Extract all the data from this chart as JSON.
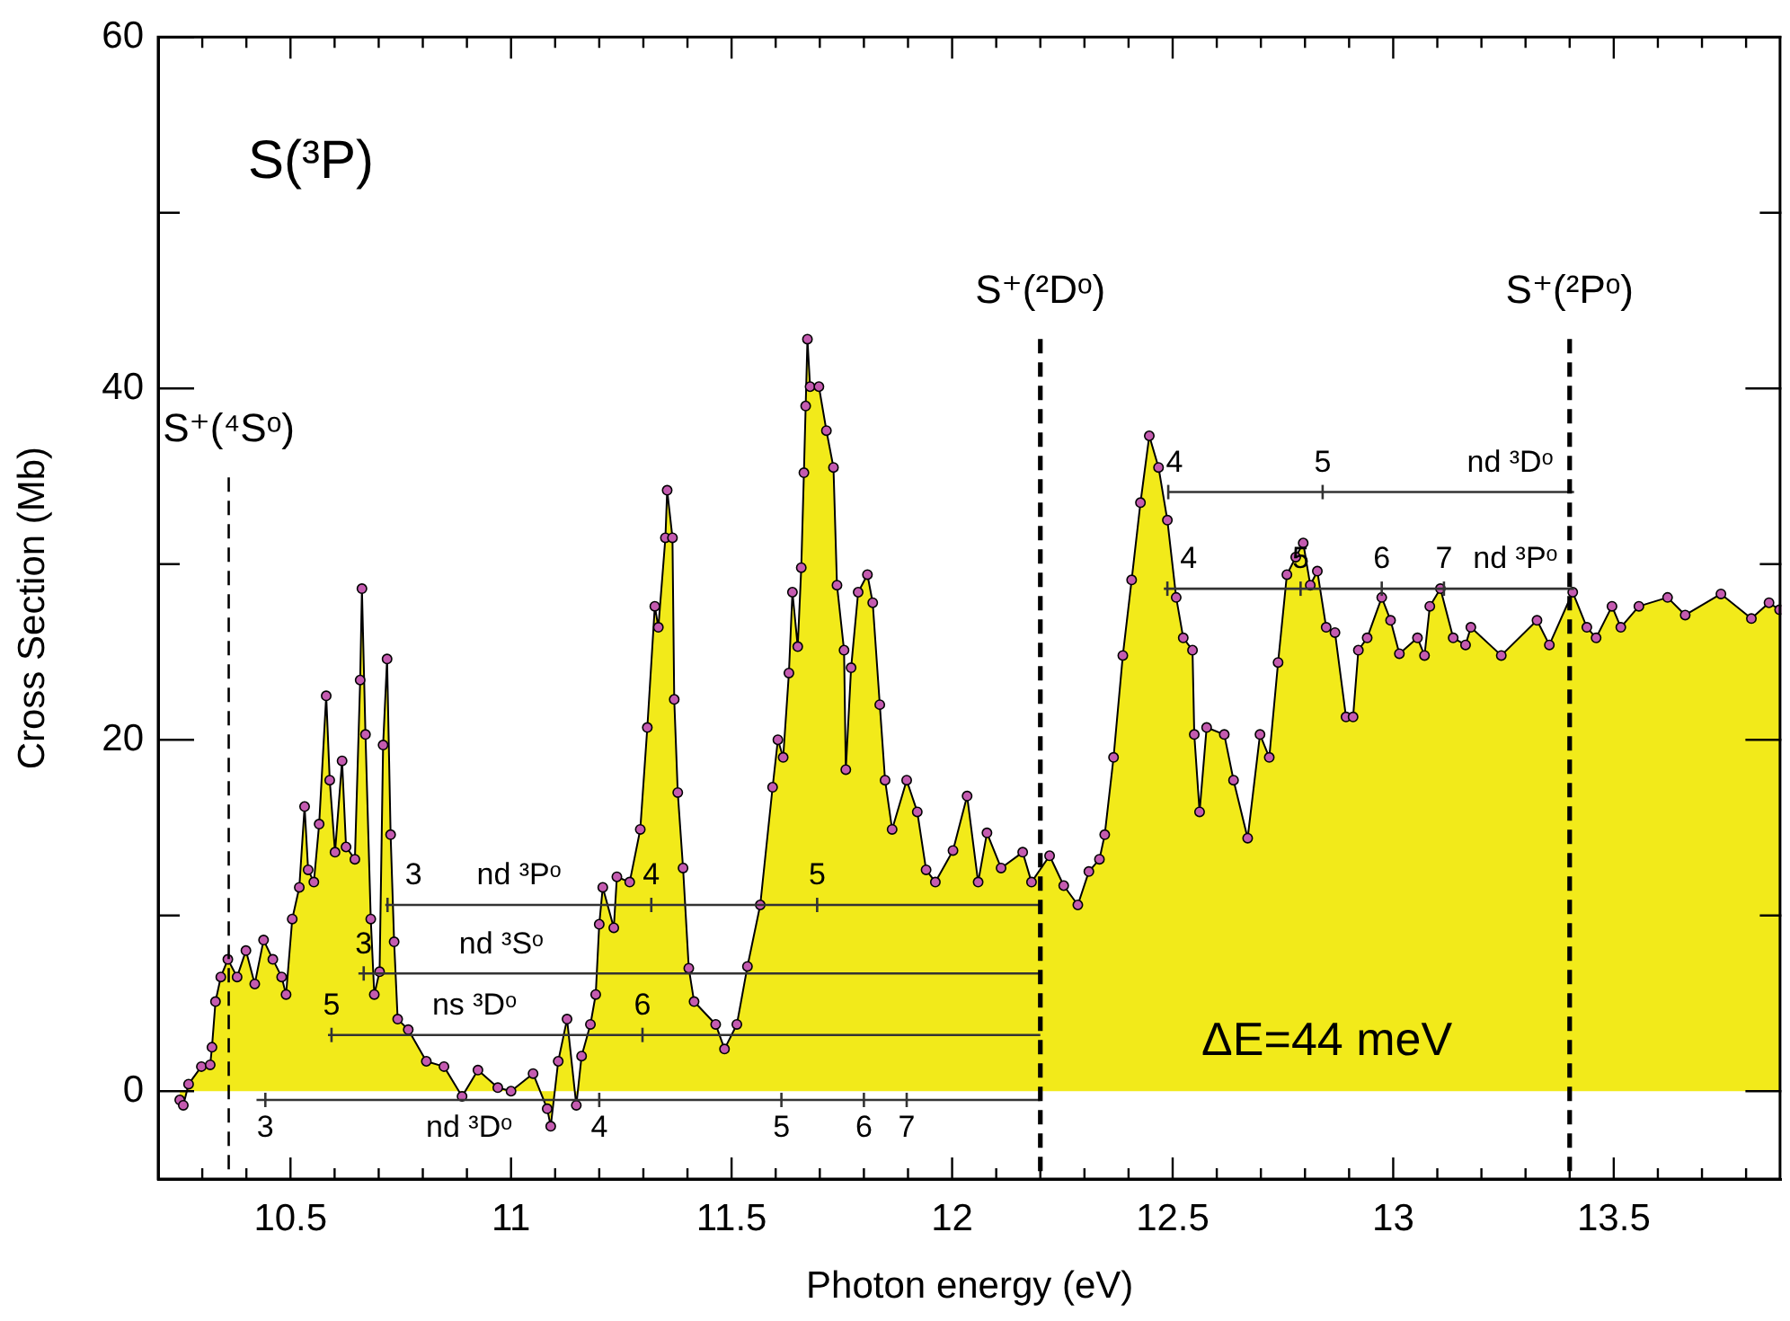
{
  "chart_data": {
    "type": "area",
    "title": "S(³P)",
    "xlabel": "Photon energy (eV)",
    "ylabel": "Cross Section (Mb)",
    "xlim": [
      10.2,
      13.88
    ],
    "ylim": [
      -5,
      60
    ],
    "xticks": [
      {
        "value": 10.3,
        "label": null
      },
      {
        "value": 10.4,
        "label": null
      },
      10.5,
      {
        "value": 10.6,
        "label": null
      },
      {
        "value": 10.7,
        "label": null
      },
      {
        "value": 10.8,
        "label": null
      },
      {
        "value": 10.9,
        "label": null
      },
      11,
      {
        "value": 11.1,
        "label": null
      },
      {
        "value": 11.2,
        "label": null
      },
      {
        "value": 11.3,
        "label": null
      },
      {
        "value": 11.4,
        "label": null
      },
      11.5,
      {
        "value": 11.6,
        "label": null
      },
      {
        "value": 11.7,
        "label": null
      },
      {
        "value": 11.8,
        "label": null
      },
      {
        "value": 11.9,
        "label": null
      },
      12,
      {
        "value": 12.1,
        "label": null
      },
      {
        "value": 12.2,
        "label": null
      },
      {
        "value": 12.3,
        "label": null
      },
      {
        "value": 12.4,
        "label": null
      },
      12.5,
      {
        "value": 12.6,
        "label": null
      },
      {
        "value": 12.7,
        "label": null
      },
      {
        "value": 12.8,
        "label": null
      },
      {
        "value": 12.9,
        "label": null
      },
      13,
      {
        "value": 13.1,
        "label": null
      },
      {
        "value": 13.2,
        "label": null
      },
      {
        "value": 13.3,
        "label": null
      },
      {
        "value": 13.4,
        "label": null
      },
      13.5,
      {
        "value": 13.6,
        "label": null
      },
      {
        "value": 13.7,
        "label": null
      },
      {
        "value": 13.8,
        "label": null
      }
    ],
    "yticks": [
      0,
      {
        "value": 10,
        "label": null
      },
      20,
      {
        "value": 30,
        "label": null
      },
      40,
      {
        "value": 50,
        "label": null
      },
      60
    ],
    "grid": false,
    "legend": false,
    "series": [
      {
        "color": "#f2ea1a",
        "marker": "circle",
        "x": [
          10.249,
          10.257,
          10.269,
          10.298,
          10.318,
          10.322,
          10.33,
          10.342,
          10.358,
          10.379,
          10.399,
          10.419,
          10.439,
          10.46,
          10.48,
          10.49,
          10.504,
          10.52,
          10.532,
          10.54,
          10.553,
          10.565,
          10.581,
          10.589,
          10.601,
          10.617,
          10.626,
          10.646,
          10.658,
          10.662,
          10.67,
          10.682,
          10.69,
          10.702,
          10.71,
          10.719,
          10.727,
          10.735,
          10.743,
          10.767,
          10.808,
          10.848,
          10.889,
          10.925,
          10.97,
          11.0,
          11.05,
          11.082,
          11.09,
          11.107,
          11.127,
          11.148,
          11.16,
          11.18,
          11.192,
          11.2,
          11.208,
          11.233,
          11.24,
          11.269,
          11.293,
          11.309,
          11.326,
          11.334,
          11.35,
          11.354,
          11.366,
          11.37,
          11.378,
          11.39,
          11.403,
          11.415,
          11.464,
          11.484,
          11.512,
          11.536,
          11.565,
          11.593,
          11.605,
          11.617,
          11.63,
          11.638,
          11.65,
          11.658,
          11.664,
          11.668,
          11.672,
          11.678,
          11.698,
          11.715,
          11.731,
          11.739,
          11.755,
          11.759,
          11.771,
          11.787,
          11.808,
          11.82,
          11.836,
          11.848,
          11.864,
          11.897,
          11.921,
          11.941,
          11.962,
          12.002,
          12.034,
          12.059,
          12.079,
          12.111,
          12.16,
          12.18,
          12.221,
          12.253,
          12.285,
          12.31,
          12.334,
          12.346,
          12.366,
          12.387,
          12.407,
          12.427,
          12.447,
          12.468,
          12.488,
          12.508,
          12.524,
          12.545,
          12.549,
          12.561,
          12.577,
          12.617,
          12.638,
          12.67,
          12.698,
          12.719,
          12.739,
          12.759,
          12.779,
          12.796,
          12.812,
          12.828,
          12.848,
          12.868,
          12.893,
          12.909,
          12.921,
          12.941,
          12.974,
          12.994,
          13.014,
          13.055,
          13.071,
          13.083,
          13.107,
          13.136,
          13.164,
          13.176,
          13.245,
          13.326,
          13.354,
          13.407,
          13.439,
          13.46,
          13.496,
          13.516,
          13.557,
          13.622,
          13.662,
          13.743,
          13.812,
          13.852,
          13.876
        ],
        "values": [
          -0.5,
          -0.8,
          0.4,
          1.4,
          1.5,
          2.5,
          5.1,
          6.5,
          7.5,
          6.5,
          8.0,
          6.1,
          8.6,
          7.5,
          6.5,
          5.5,
          9.8,
          11.6,
          16.2,
          12.6,
          11.9,
          15.2,
          22.5,
          17.7,
          13.6,
          18.8,
          13.9,
          13.2,
          23.4,
          28.6,
          20.3,
          9.8,
          5.5,
          6.8,
          19.7,
          24.6,
          14.6,
          8.5,
          4.1,
          3.5,
          1.7,
          1.4,
          -0.3,
          1.2,
          0.2,
          0.0,
          1.0,
          -1.0,
          -2.0,
          1.7,
          4.1,
          -0.8,
          2.0,
          3.8,
          5.5,
          9.5,
          11.6,
          9.3,
          12.2,
          11.9,
          14.9,
          20.7,
          27.6,
          26.4,
          31.5,
          34.2,
          31.5,
          22.3,
          17.0,
          12.7,
          7.0,
          5.1,
          3.8,
          2.4,
          3.8,
          7.1,
          10.6,
          17.3,
          20.0,
          19.0,
          23.8,
          28.4,
          25.3,
          29.8,
          35.2,
          39.0,
          42.8,
          40.1,
          40.1,
          37.6,
          35.5,
          28.8,
          25.1,
          18.3,
          24.1,
          28.4,
          29.4,
          27.8,
          22.0,
          17.7,
          14.9,
          17.7,
          15.9,
          12.6,
          11.9,
          13.7,
          16.8,
          11.9,
          14.7,
          12.7,
          13.6,
          11.9,
          13.4,
          11.7,
          10.6,
          12.5,
          13.2,
          14.6,
          19.0,
          24.8,
          29.1,
          33.5,
          37.3,
          35.5,
          32.5,
          28.1,
          25.8,
          25.1,
          20.3,
          15.9,
          20.7,
          20.3,
          17.7,
          14.4,
          20.3,
          19.0,
          24.4,
          29.4,
          30.4,
          31.2,
          28.8,
          29.6,
          26.4,
          26.1,
          21.3,
          21.3,
          25.1,
          25.8,
          28.1,
          26.8,
          24.9,
          25.8,
          24.8,
          27.6,
          28.6,
          25.8,
          25.4,
          26.4,
          24.8,
          26.8,
          25.4,
          28.4,
          26.4,
          25.8,
          27.6,
          26.4,
          27.6,
          28.1,
          27.1,
          28.3,
          26.9,
          27.8,
          27.4
        ]
      },
      {
        "type": "line",
        "color": "#333333",
        "x": [
          10.423,
          10.443,
          11.2,
          11.613,
          11.8,
          11.897,
          12.2
        ],
        "values": [
          -0.5,
          -0.5,
          -0.5,
          -0.5,
          -0.5,
          -0.5,
          -0.5
        ]
      },
      {
        "type": "line",
        "color": "#333333",
        "x": [
          10.585,
          10.593,
          11.298,
          12.2
        ],
        "values": [
          3.2,
          3.2,
          3.2,
          3.2
        ]
      },
      {
        "type": "line",
        "color": "#333333",
        "x": [
          10.654,
          10.666,
          12.2
        ],
        "values": [
          6.7,
          6.7,
          6.7
        ]
      },
      {
        "type": "line",
        "color": "#333333",
        "x": [
          10.715,
          10.72,
          11.318,
          11.694,
          12.2
        ],
        "values": [
          10.6,
          10.6,
          10.6,
          10.6,
          10.6
        ]
      },
      {
        "type": "line",
        "color": "#333333",
        "x": [
          12.488,
          12.49,
          12.84,
          13.41
        ],
        "values": [
          34.1,
          34.1,
          34.1,
          34.1
        ]
      },
      {
        "type": "line",
        "color": "#333333",
        "x": [
          12.48,
          12.488,
          12.79,
          12.974,
          13.115,
          13.41
        ],
        "values": [
          28.6,
          28.6,
          28.6,
          28.6,
          28.6,
          28.6
        ]
      }
    ],
    "ref_lines": [
      {
        "axis": "x",
        "value": 10.36,
        "label": "S⁺(⁴Sᵒ)",
        "color": "#000000",
        "line_style": "dashed"
      },
      {
        "axis": "x",
        "value": 12.2,
        "label": "S⁺(²Dᵒ)",
        "color": "#000000",
        "line_style": "dashed"
      },
      {
        "axis": "x",
        "value": 13.4,
        "label": "S⁺(²Pᵒ)",
        "color": "#000000",
        "line_style": "dashed"
      }
    ],
    "annotations": [
      "ΔE=44 meV",
      {
        "text": "nd ³Dᵒ",
        "x": 10.905,
        "y": -0.5
      },
      {
        "text": "3",
        "x": 10.443,
        "y": -0.5
      },
      {
        "text": "4",
        "x": 11.2,
        "y": -0.5
      },
      {
        "text": "5",
        "x": 11.613,
        "y": -0.5
      },
      {
        "text": "6",
        "x": 11.8,
        "y": -0.5
      },
      {
        "text": "7",
        "x": 11.897,
        "y": -0.5
      },
      {
        "text": "ns ³Dᵒ",
        "x": 10.917,
        "y": 3.2
      },
      {
        "text": "5",
        "x": 10.593,
        "y": 3.2
      },
      {
        "text": "6",
        "x": 11.298,
        "y": 3.2
      },
      {
        "text": "nd ³Sᵒ",
        "x": 10.978,
        "y": 6.7
      },
      {
        "text": "3",
        "x": 10.666,
        "y": 6.7
      },
      {
        "text": "nd ³Pᵒ",
        "x": 11.018,
        "y": 10.6
      },
      {
        "text": "3",
        "x": 10.779,
        "y": 10.6
      },
      {
        "text": "4",
        "x": 11.318,
        "y": 10.6
      },
      {
        "text": "5",
        "x": 11.694,
        "y": 10.6
      },
      {
        "text": "nd ³Dᵒ",
        "x": 13.265,
        "y": 34.1
      },
      {
        "text": "4",
        "x": 12.504,
        "y": 34.1
      },
      {
        "text": "5",
        "x": 12.84,
        "y": 34.1
      },
      {
        "text": "nd ³Pᵒ",
        "x": 13.277,
        "y": 28.6
      },
      {
        "text": "4",
        "x": 12.536,
        "y": 28.6
      },
      {
        "text": "5",
        "x": 12.79,
        "y": 28.6
      },
      {
        "text": "6",
        "x": 12.974,
        "y": 28.6
      },
      {
        "text": "7",
        "x": 13.115,
        "y": 28.6
      }
    ]
  }
}
